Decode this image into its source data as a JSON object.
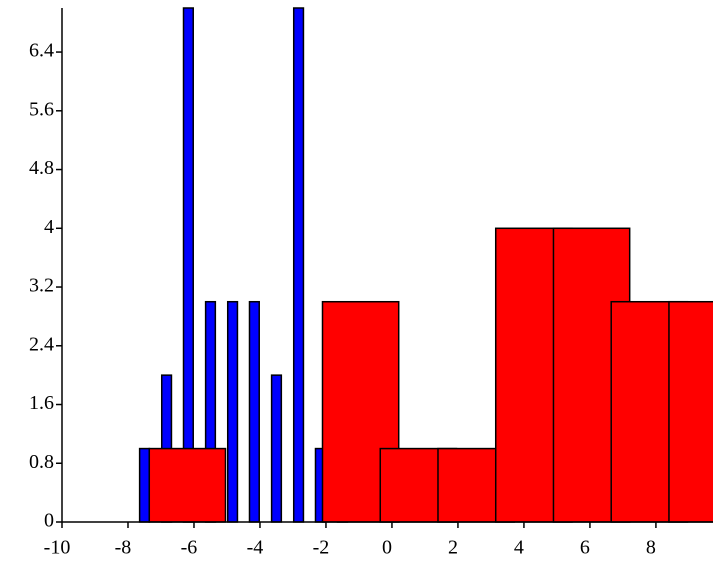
{
  "chart_data": {
    "type": "bar",
    "xlim": [
      -10,
      9.73
    ],
    "ylim": [
      0,
      7
    ],
    "xticks": [
      -10,
      -8,
      -6,
      -4,
      -2,
      0,
      2,
      4,
      6,
      8
    ],
    "yticks": [
      0,
      0.8,
      1.6,
      2.4,
      3.2,
      4,
      4.8,
      5.6,
      6.4
    ],
    "series": [
      {
        "color": "#0000ff",
        "x": [
          -7.5,
          -6.83,
          -6.17,
          -5.5,
          -4.83,
          -4.17,
          -3.5,
          -2.83,
          -2.17,
          -1.5
        ],
        "values": [
          1,
          2,
          7,
          3,
          3,
          3,
          2,
          7,
          1,
          2
        ]
      },
      {
        "color": "#ff0000",
        "x": [
          -6.2,
          -0.95,
          0.8,
          2.55,
          4.3,
          6.05,
          7.8,
          9.55
        ],
        "values": [
          1,
          3,
          1,
          1,
          4,
          4,
          3,
          3
        ]
      }
    ]
  }
}
